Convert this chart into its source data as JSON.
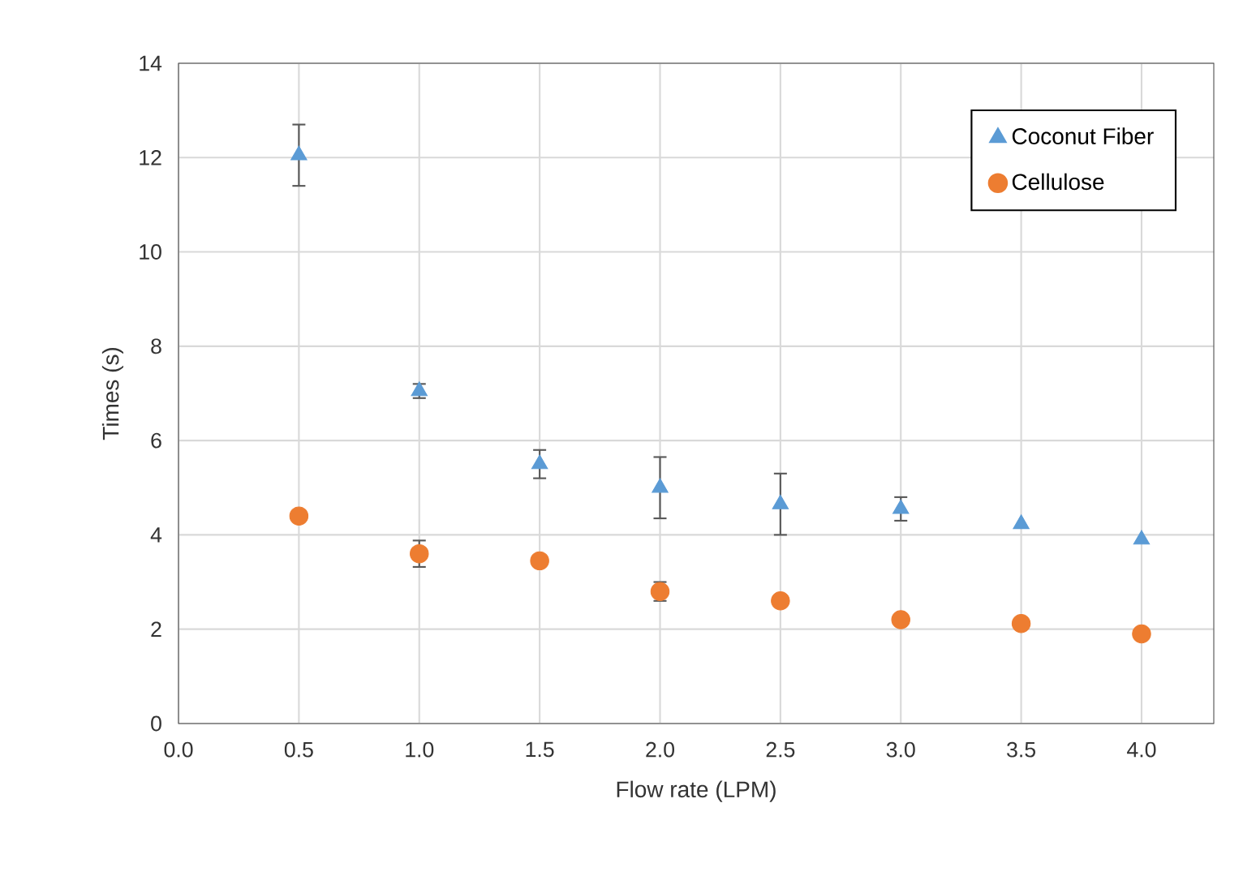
{
  "chart_data": {
    "type": "scatter",
    "xlabel": "Flow rate (LPM)",
    "ylabel": "Times (s)",
    "x": [
      0.5,
      1.0,
      1.5,
      2.0,
      2.5,
      3.0,
      3.5,
      4.0
    ],
    "series": [
      {
        "name": "Coconut Fiber",
        "color": "#5b9bd5",
        "marker": "triangle",
        "values": [
          12.05,
          7.05,
          5.5,
          5.0,
          4.65,
          4.55,
          4.23,
          3.9
        ],
        "errors": [
          0.65,
          0.15,
          0.3,
          0.65,
          0.65,
          0.25,
          null,
          null
        ]
      },
      {
        "name": "Cellulose",
        "color": "#ed7d31",
        "marker": "circle",
        "values": [
          4.4,
          3.6,
          3.45,
          2.8,
          2.6,
          2.2,
          2.12,
          1.9
        ],
        "errors": [
          null,
          0.28,
          null,
          0.2,
          null,
          null,
          null,
          null
        ]
      }
    ],
    "xlim": [
      0,
      4.3
    ],
    "xticks": [
      {
        "value": 0,
        "label": "0.0"
      },
      {
        "value": 0.5,
        "label": "0.5"
      },
      {
        "value": 1,
        "label": "1.0"
      },
      {
        "value": 1.5,
        "label": "1.5"
      },
      {
        "value": 2,
        "label": "2.0"
      },
      {
        "value": 2.5,
        "label": "2.5"
      },
      {
        "value": 3,
        "label": "3.0"
      },
      {
        "value": 3.5,
        "label": "3.5"
      },
      {
        "value": 4,
        "label": "4.0"
      }
    ],
    "ylim": [
      0,
      14
    ],
    "yticks": [
      0,
      2,
      4,
      6,
      8,
      10,
      12,
      14
    ],
    "grid": true,
    "legend": "top right"
  }
}
